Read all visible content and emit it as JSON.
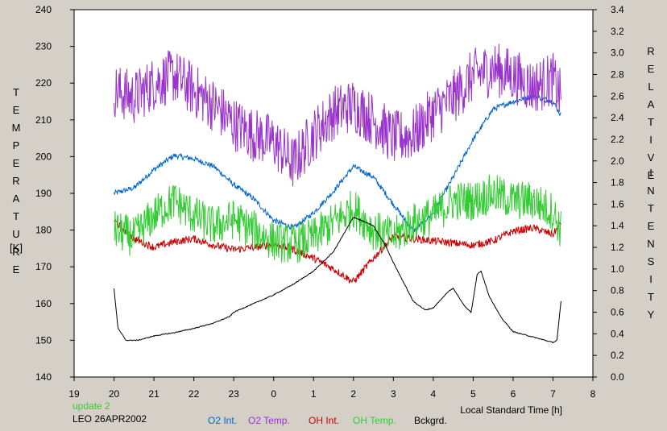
{
  "chart_data": {
    "type": "line",
    "left_axis": {
      "label_letters": [
        "T",
        "E",
        "M",
        "P",
        "E",
        "R",
        "A",
        "T",
        "U",
        "R",
        "E"
      ],
      "unit": "[K]",
      "range": [
        140,
        240
      ],
      "ticks": [
        "140",
        "150",
        "160",
        "170",
        "180",
        "190",
        "200",
        "210",
        "220",
        "230",
        "240"
      ]
    },
    "right_axis": {
      "label_word1": [
        "R",
        "E",
        "L",
        "A",
        "T",
        "I",
        "V",
        "E"
      ],
      "label_word2": [
        "I",
        "N",
        "T",
        "E",
        "N",
        "S",
        "I",
        "T",
        "Y"
      ],
      "range": [
        0.0,
        3.4
      ],
      "ticks": [
        "0.0",
        "0.2",
        "0.4",
        "0.6",
        "0.8",
        "1.0",
        "1.2",
        "1.4",
        "1.6",
        "1.8",
        "2.0",
        "2.2",
        "2.4",
        "2.6",
        "2.8",
        "3.0",
        "3.2",
        "3.4"
      ]
    },
    "x_axis": {
      "label": "Local Standard Time [h]",
      "range": [
        19,
        32
      ],
      "ticks": [
        "19",
        "20",
        "21",
        "22",
        "23",
        "0",
        "1",
        "2",
        "3",
        "4",
        "5",
        "6",
        "7",
        "8"
      ]
    },
    "grid": false,
    "series": [
      {
        "name": "O2 Int.",
        "axis": "right",
        "color": "#0066cc",
        "x": [
          20.0,
          20.5,
          21.0,
          21.5,
          22.0,
          22.5,
          23.0,
          23.5,
          24.0,
          24.5,
          25.0,
          25.5,
          26.0,
          26.5,
          27.0,
          27.5,
          28.0,
          28.5,
          29.0,
          29.5,
          30.0,
          30.5,
          31.0,
          31.2
        ],
        "y": [
          1.7,
          1.75,
          1.92,
          2.05,
          2.02,
          1.95,
          1.78,
          1.65,
          1.45,
          1.38,
          1.52,
          1.72,
          1.95,
          1.85,
          1.6,
          1.35,
          1.52,
          1.85,
          2.2,
          2.48,
          2.55,
          2.6,
          2.55,
          2.42
        ]
      },
      {
        "name": "O2 Temp.",
        "axis": "left",
        "color": "#9933cc",
        "x": [
          20.0,
          20.5,
          21.0,
          21.5,
          22.0,
          22.5,
          23.0,
          23.5,
          24.0,
          24.5,
          25.0,
          25.5,
          26.0,
          26.5,
          27.0,
          27.5,
          28.0,
          28.5,
          29.0,
          29.5,
          30.0,
          30.5,
          31.0,
          31.2
        ],
        "y": [
          218,
          216,
          220,
          222,
          218,
          214,
          209,
          206,
          204,
          198,
          206,
          212,
          214,
          210,
          205,
          206,
          212,
          216,
          222,
          224,
          222,
          219,
          221,
          216
        ]
      },
      {
        "name": "OH Int.",
        "axis": "right",
        "color": "#cc0000",
        "x": [
          20.0,
          20.5,
          21.0,
          21.5,
          22.0,
          22.5,
          23.0,
          23.5,
          24.0,
          24.5,
          25.0,
          25.5,
          26.0,
          26.5,
          27.0,
          27.5,
          28.0,
          28.5,
          29.0,
          29.5,
          30.0,
          30.5,
          31.0,
          31.2
        ],
        "y": [
          1.45,
          1.28,
          1.2,
          1.25,
          1.28,
          1.22,
          1.18,
          1.2,
          1.23,
          1.18,
          1.1,
          1.0,
          0.88,
          1.1,
          1.3,
          1.28,
          1.26,
          1.24,
          1.22,
          1.26,
          1.35,
          1.38,
          1.32,
          1.42
        ]
      },
      {
        "name": "OH Temp.",
        "axis": "left",
        "color": "#33cc33",
        "x": [
          20.0,
          20.5,
          21.0,
          21.5,
          22.0,
          22.5,
          23.0,
          23.5,
          24.0,
          24.5,
          25.0,
          25.5,
          26.0,
          26.5,
          27.0,
          27.5,
          28.0,
          28.5,
          29.0,
          29.5,
          30.0,
          30.5,
          31.0,
          31.2
        ],
        "y": [
          180,
          178,
          184,
          188,
          184,
          181,
          183,
          180,
          177,
          176,
          178,
          182,
          186,
          180,
          178,
          182,
          184,
          188,
          188,
          190,
          188,
          188,
          185,
          180
        ]
      },
      {
        "name": "Bckgrd.",
        "axis": "right",
        "color": "#000000",
        "x": [
          20.0,
          20.1,
          20.3,
          20.6,
          21.0,
          21.5,
          22.0,
          22.5,
          22.9,
          23.0,
          23.5,
          24.0,
          24.5,
          25.0,
          25.5,
          26.0,
          26.5,
          26.8,
          27.0,
          27.5,
          27.8,
          28.0,
          28.2,
          28.4,
          28.5,
          28.8,
          28.95,
          29.1,
          29.2,
          29.4,
          29.7,
          30.0,
          30.5,
          31.0,
          31.1,
          31.2
        ],
        "y": [
          0.82,
          0.45,
          0.34,
          0.34,
          0.38,
          0.41,
          0.45,
          0.5,
          0.56,
          0.6,
          0.68,
          0.76,
          0.86,
          0.98,
          1.16,
          1.48,
          1.4,
          1.22,
          1.06,
          0.7,
          0.62,
          0.64,
          0.72,
          0.8,
          0.82,
          0.65,
          0.6,
          0.95,
          0.98,
          0.75,
          0.55,
          0.42,
          0.37,
          0.32,
          0.34,
          0.7
        ]
      }
    ]
  },
  "footer": {
    "update": "update 2",
    "station": "LEO 26APR2002",
    "update_color": "#33cc33"
  }
}
